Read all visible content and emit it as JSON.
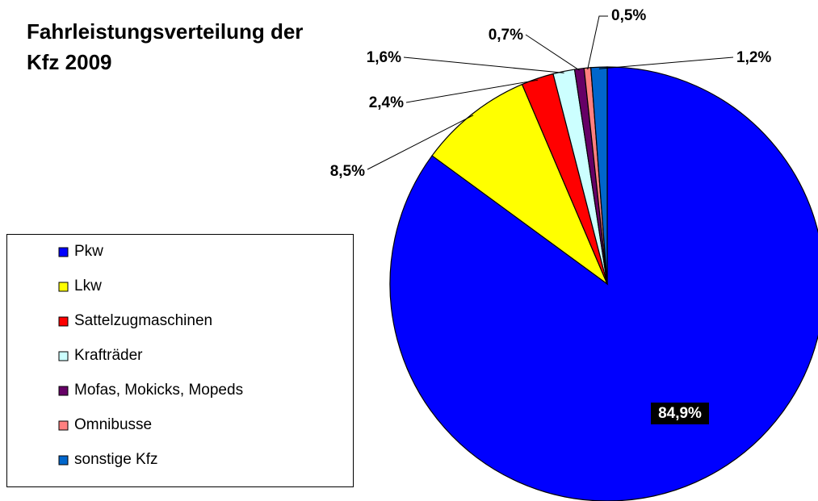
{
  "chart_data": {
    "type": "pie",
    "title": "Fahrleistungsverteilung der Kfz 2009",
    "categories": [
      "Pkw",
      "Lkw",
      "Sattelzugmaschinen",
      "Krafträder",
      "Mofas, Mokicks, Mopeds",
      "Omnibusse",
      "sonstige Kfz"
    ],
    "values": [
      84.9,
      8.5,
      2.4,
      1.6,
      0.7,
      0.5,
      1.2
    ],
    "value_labels": [
      "84,9%",
      "8,5%",
      "2,4%",
      "1,6%",
      "0,7%",
      "0,5%",
      "1,2%"
    ],
    "colors": [
      "#0000ff",
      "#ffff00",
      "#ff0000",
      "#ccffff",
      "#660066",
      "#ff8080",
      "#0066cc"
    ],
    "legend": "left"
  }
}
